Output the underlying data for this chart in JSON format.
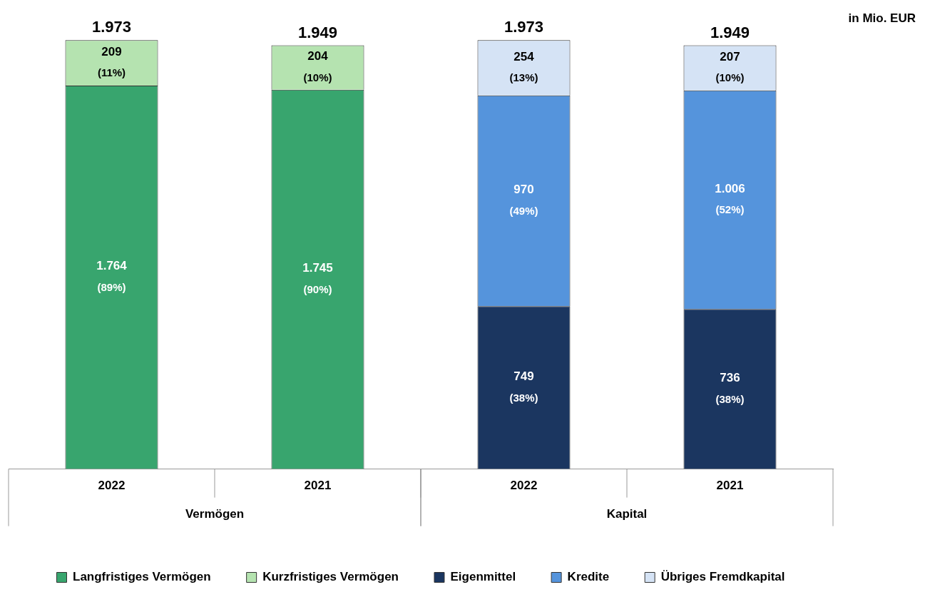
{
  "chart_data": {
    "type": "bar",
    "stacked": true,
    "ylabel": "in Mio. EUR",
    "categories": [
      "2022",
      "2021",
      "2022",
      "2021"
    ],
    "annotations": [
      "Vermögen",
      "Kapital"
    ],
    "series": [
      {
        "name": "Langfristiges Vermögen",
        "color": "#38a56e",
        "values": [
          1764,
          1745,
          null,
          null
        ],
        "value_labels": [
          "1.764\n(89%)",
          "1.745\n(90%)",
          null,
          null
        ]
      },
      {
        "name": "Kurzfristiges Vermögen",
        "color": "#b5e3b0",
        "values": [
          209,
          204,
          null,
          null
        ],
        "value_labels": [
          "209\n(11%)",
          "204\n(10%)",
          null,
          null
        ]
      },
      {
        "name": "Eigenmittel",
        "color": "#1b3660",
        "values": [
          null,
          null,
          749,
          736
        ],
        "value_labels": [
          null,
          null,
          "749\n(38%)",
          "736\n(38%)"
        ]
      },
      {
        "name": "Kredite",
        "color": "#5594dc",
        "values": [
          null,
          null,
          970,
          1006
        ],
        "value_labels": [
          null,
          null,
          "970\n(49%)",
          "1.006\n(52%)"
        ]
      },
      {
        "name": "Übriges Fremdkapital",
        "color": "#d5e3f5",
        "values": [
          null,
          null,
          254,
          207
        ],
        "value_labels": [
          null,
          null,
          "254\n(13%)",
          "207\n(10%)"
        ]
      }
    ],
    "totals": [
      "1.973",
      "1.949",
      "1.973",
      "1.949"
    ],
    "tick_labels": "x",
    "grid": false,
    "legend": "bottom"
  }
}
